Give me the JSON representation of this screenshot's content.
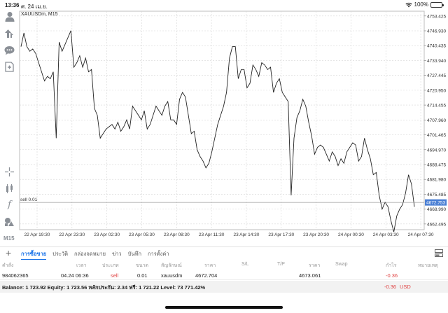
{
  "status_bar": {
    "time": "13:36",
    "date": "ศ. 24 เม.ย.",
    "battery_text": "100%"
  },
  "chart": {
    "symbol_title": "XAUUSDm, M15",
    "position_line_label": "sell 0.01",
    "current_price_label": "4672.753",
    "price_labels": [
      "4753.425",
      "4746.930",
      "4740.435",
      "4733.940",
      "4727.445",
      "4720.950",
      "4714.455",
      "4707.960",
      "4701.465",
      "4694.970",
      "4688.475",
      "4681.980",
      "4675.485",
      "4668.990",
      "4662.495"
    ],
    "time_labels": [
      "22 Apr 19:30",
      "22 Apr 23:30",
      "23 Apr 02:30",
      "23 Apr 05:30",
      "23 Apr 08:30",
      "23 Apr 11:30",
      "23 Apr 14:30",
      "23 Apr 17:30",
      "23 Apr 20:30",
      "24 Apr 00:30",
      "24 Apr 03:30",
      "24 Apr 07:30"
    ],
    "colors": {
      "line": "#222222",
      "price_tag_bg": "#4a7fd4",
      "grid": "#d6d6d6"
    }
  },
  "chart_data": {
    "type": "line",
    "title": "XAUUSDm, M15",
    "ylim": [
      4660,
      4756
    ],
    "grid": true,
    "x": [
      0,
      1,
      2,
      3,
      4,
      5,
      6,
      7,
      8,
      9,
      10,
      11,
      12,
      13,
      14,
      15,
      16,
      17,
      18,
      19,
      20,
      21,
      22,
      23,
      24,
      25,
      26,
      27,
      28,
      29,
      30,
      31,
      32,
      33,
      34,
      35,
      36,
      37,
      38,
      39,
      40,
      41,
      42,
      43,
      44,
      45,
      46,
      47,
      48,
      49,
      50,
      51,
      52,
      53,
      54,
      55,
      56,
      57,
      58,
      59,
      60,
      61,
      62,
      63,
      64,
      65,
      66,
      67,
      68,
      69,
      70,
      71,
      72,
      73,
      74,
      75,
      76,
      77,
      78,
      79,
      80,
      81,
      82,
      83,
      84,
      85,
      86,
      87,
      88,
      89,
      90,
      91,
      92,
      93,
      94,
      95,
      96,
      97,
      98,
      99,
      100,
      101,
      102,
      103,
      104,
      105,
      106,
      107,
      108,
      109,
      110,
      111,
      112,
      113,
      114,
      115,
      116,
      117,
      118,
      119,
      120,
      121,
      122,
      123,
      124,
      125,
      126,
      127,
      128,
      129,
      130,
      131,
      132,
      133,
      134
    ],
    "series": [
      {
        "values": [
          4740,
          4746,
          4740,
          4738,
          4739,
          4737,
          4733,
          4729,
          4725,
          4727,
          4726,
          4729,
          4700,
          4742,
          4738,
          4741,
          4744,
          4747,
          4731,
          4733,
          4736,
          4731,
          4735,
          4729,
          4730,
          4713,
          4710,
          4700,
          4702,
          4704,
          4705,
          4706,
          4704,
          4707,
          4703,
          4705,
          4708,
          4704,
          4714,
          4712,
          4710,
          4708,
          4712,
          4704,
          4706,
          4710,
          4714,
          4712,
          4710,
          4714,
          4716,
          4708,
          4708,
          4706,
          4717,
          4720,
          4718,
          4710,
          4702,
          4703,
          4695,
          4692,
          4690,
          4687,
          4689,
          4694,
          4700,
          4706,
          4710,
          4714,
          4720,
          4735,
          4740,
          4740,
          4726,
          4730,
          4730,
          4722,
          4724,
          4732,
          4730,
          4727,
          4733,
          4732,
          4730,
          4731,
          4720,
          4724,
          4726,
          4720,
          4718,
          4716,
          4675,
          4700,
          4709,
          4712,
          4717,
          4714,
          4707,
          4701,
          4693,
          4696,
          4697,
          4696,
          4693,
          4690,
          4694,
          4692,
          4688,
          4691,
          4689,
          4694,
          4696,
          4698,
          4697,
          4690,
          4692,
          4700,
          4695,
          4691,
          4684,
          4685,
          4675,
          4669,
          4672,
          4670,
          4664,
          4659,
          4666,
          4669,
          4671,
          4676,
          4684,
          4680,
          4670
        ]
      }
    ]
  },
  "tabs": {
    "items": [
      "การซื้อขาย",
      "ประวัติ",
      "กล่องจดหมาย",
      "ข่าว",
      "บันทึก",
      "การตั้งค่า"
    ]
  },
  "positions": {
    "headers": [
      "คำสั่ง",
      "เวลา",
      "ประเภท",
      "ขนาด",
      "สัญลักษณ์",
      "ราคา",
      "S/L",
      "T/P",
      "ราคา",
      "Swap",
      "กำไร",
      "หมายเหตุ"
    ],
    "row": {
      "order": "984062365",
      "time": "04.24 06:36",
      "type": "sell",
      "volume": "0.01",
      "symbol": "xauusdm",
      "open_price": "4672.704",
      "current_price": "4673.061",
      "profit": "-0.36"
    },
    "balance_text": "Balance: 1 723.92 Equity: 1 723.56 หลักประกัน: 2.34 ฟรี: 1 721.22 Level: 73 771.42%",
    "total_profit": "-0.36",
    "currency": "USD"
  }
}
